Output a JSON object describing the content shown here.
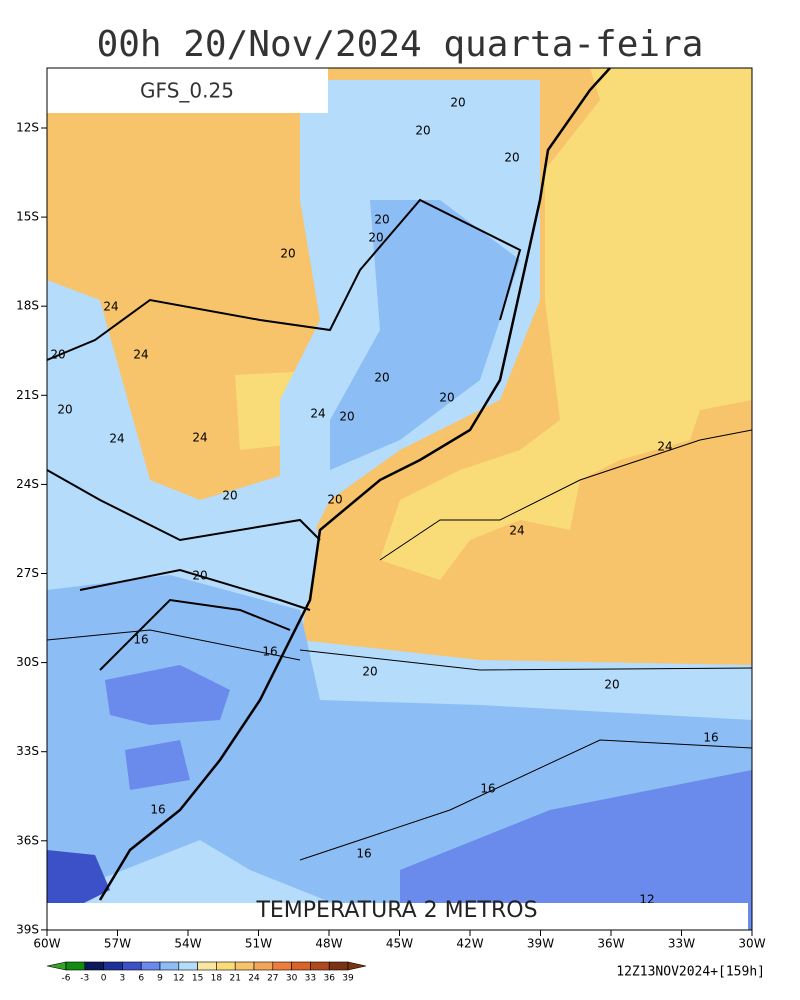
{
  "header": {
    "title": "00h 20/Nov/2024 quarta-feira",
    "model": "GFS_0.25"
  },
  "map": {
    "variable": "TEMPERATURA 2 METROS",
    "lat_labels": [
      "12S",
      "15S",
      "18S",
      "21S",
      "24S",
      "27S",
      "30S",
      "33S",
      "36S",
      "39S"
    ],
    "lon_labels": [
      "60W",
      "57W",
      "54W",
      "51W",
      "48W",
      "45W",
      "42W",
      "39W",
      "36W",
      "33W",
      "30W"
    ],
    "contour_labels": [
      "20",
      "20",
      "20",
      "20",
      "20",
      "20",
      "20",
      "20",
      "20",
      "20",
      "20",
      "20",
      "20",
      "20",
      "20",
      "20",
      "24",
      "24",
      "24",
      "24",
      "24",
      "24",
      "24",
      "16",
      "16",
      "16",
      "16",
      "16",
      "16",
      "12"
    ]
  },
  "colorbar": {
    "labels": [
      "-6",
      "-3",
      "0",
      "3",
      "6",
      "9",
      "12",
      "15",
      "18",
      "21",
      "24",
      "27",
      "30",
      "33",
      "36",
      "39"
    ]
  },
  "footer": {
    "run": "12Z13NOV2024+[159h]"
  }
}
